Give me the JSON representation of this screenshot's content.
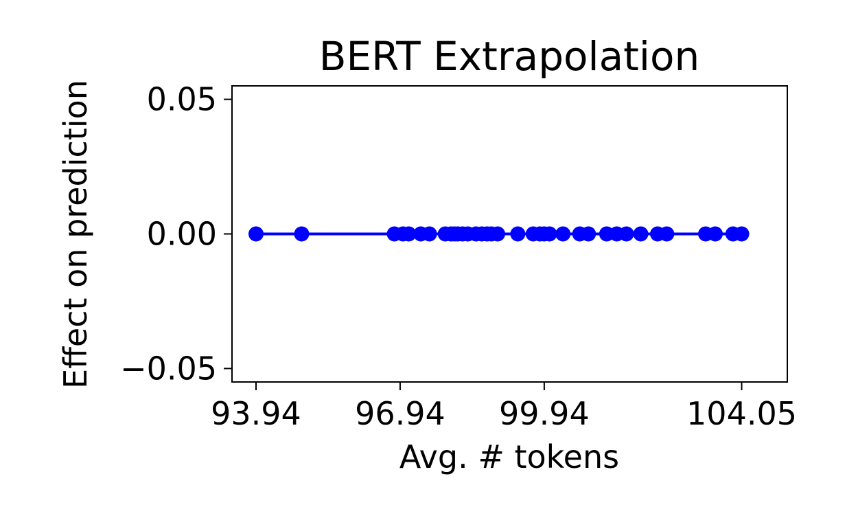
{
  "chart_data": {
    "type": "line",
    "title": "BERT Extrapolation",
    "xlabel": "Avg. # tokens",
    "ylabel": "Effect on prediction",
    "xlim": [
      93.44,
      105.0
    ],
    "ylim": [
      -0.055,
      0.055
    ],
    "grid": false,
    "x_ticks": [
      {
        "value": 93.94,
        "label": "93.94"
      },
      {
        "value": 96.94,
        "label": "96.94"
      },
      {
        "value": 99.94,
        "label": "99.94"
      },
      {
        "value": 104.05,
        "label": "104.05"
      }
    ],
    "y_ticks": [
      {
        "value": 0.05,
        "label": "0.05"
      },
      {
        "value": 0.0,
        "label": "0.00"
      },
      {
        "value": -0.05,
        "label": "−0.05"
      }
    ],
    "series": [
      {
        "color": "#0000ff",
        "marker": "circle",
        "x": [
          93.94,
          94.89,
          96.82,
          97.0,
          97.12,
          97.37,
          97.55,
          97.88,
          98.0,
          98.07,
          98.14,
          98.24,
          98.35,
          98.52,
          98.64,
          98.75,
          98.84,
          98.97,
          99.39,
          99.71,
          99.85,
          99.94,
          100.05,
          100.33,
          100.68,
          100.86,
          101.24,
          101.45,
          101.65,
          101.95,
          102.3,
          102.49,
          103.3,
          103.5,
          103.87,
          104.05
        ],
        "y": [
          0,
          0,
          0,
          0,
          0,
          0,
          0,
          0,
          0,
          0,
          0,
          0,
          0,
          0,
          0,
          0,
          0,
          0,
          0,
          0,
          0,
          0,
          0,
          0,
          0,
          0,
          0,
          0,
          0,
          0,
          0,
          0,
          0,
          0,
          0,
          0
        ]
      }
    ]
  }
}
